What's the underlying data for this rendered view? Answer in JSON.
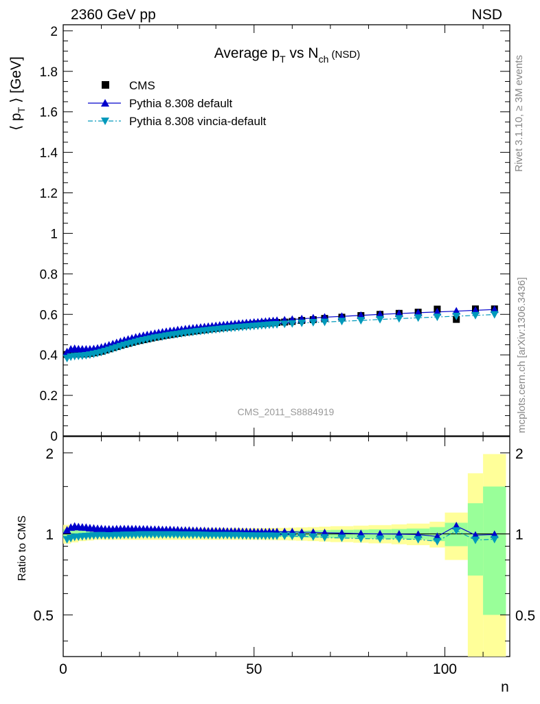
{
  "header": {
    "left": "2360 GeV pp",
    "right": "NSD"
  },
  "side_labels": {
    "rivet": "Rivet 3.1.10, ≥ 3M events",
    "mcplots": "mcplots.cern.ch [arXiv:1306.3436]"
  },
  "chart_data": [
    {
      "type": "scatter",
      "title": "Average p_T vs N_ch (NSD)",
      "ylabel": "⟨ p_T ⟩ [GeV]",
      "watermark": "CMS_2011_S8884919",
      "xlim": [
        0,
        117
      ],
      "ylim": [
        0,
        2.03
      ],
      "yticks": [
        "0",
        "0.2",
        "0.4",
        "0.6",
        "0.8",
        "1",
        "1.2",
        "1.4",
        "1.6",
        "1.8",
        "2"
      ],
      "legend_position": "top-left",
      "colors": {
        "cms": "#000000",
        "default": "#0000cc",
        "vincia": "#0099bb"
      },
      "x": [
        1,
        2,
        3,
        4,
        5,
        6,
        7,
        8,
        9,
        10,
        11,
        12,
        13,
        14,
        15,
        16,
        17,
        18,
        19,
        20,
        21,
        22,
        23,
        24,
        25,
        26,
        27,
        28,
        29,
        30,
        31,
        32,
        33,
        34,
        35,
        36,
        37,
        38,
        39,
        40,
        41,
        42,
        43,
        44,
        45,
        46,
        47,
        48,
        49,
        50,
        51,
        52,
        53,
        54,
        55,
        56,
        58,
        60,
        62.5,
        65.5,
        68.5,
        73,
        78,
        83,
        88,
        93,
        98,
        103,
        108,
        113
      ],
      "series": [
        {
          "name": "CMS",
          "marker": "square",
          "values": [
            0.402,
            0.405,
            0.404,
            0.404,
            0.404,
            0.405,
            0.407,
            0.41,
            0.414,
            0.418,
            0.424,
            0.43,
            0.436,
            0.441,
            0.447,
            0.452,
            0.457,
            0.462,
            0.467,
            0.471,
            0.475,
            0.479,
            0.483,
            0.487,
            0.49,
            0.494,
            0.497,
            0.5,
            0.503,
            0.506,
            0.509,
            0.512,
            0.514,
            0.517,
            0.519,
            0.522,
            0.524,
            0.527,
            0.529,
            0.531,
            0.533,
            0.535,
            0.537,
            0.539,
            0.541,
            0.543,
            0.545,
            0.547,
            0.549,
            0.551,
            0.553,
            0.554,
            0.556,
            0.557,
            0.559,
            0.56,
            0.562,
            0.565,
            0.57,
            0.574,
            0.58,
            0.586,
            0.594,
            0.6,
            0.605,
            0.611,
            0.626,
            0.575,
            0.627,
            0.627
          ]
        },
        {
          "name": "Pythia 8.308 default",
          "marker": "triangle-up",
          "values": [
            0.415,
            0.428,
            0.431,
            0.429,
            0.428,
            0.428,
            0.428,
            0.43,
            0.433,
            0.437,
            0.442,
            0.448,
            0.454,
            0.46,
            0.466,
            0.472,
            0.477,
            0.482,
            0.487,
            0.491,
            0.495,
            0.499,
            0.502,
            0.506,
            0.509,
            0.512,
            0.515,
            0.518,
            0.52,
            0.523,
            0.525,
            0.528,
            0.53,
            0.532,
            0.534,
            0.536,
            0.538,
            0.54,
            0.542,
            0.544,
            0.546,
            0.548,
            0.549,
            0.551,
            0.553,
            0.555,
            0.556,
            0.558,
            0.559,
            0.561,
            0.562,
            0.564,
            0.565,
            0.567,
            0.568,
            0.57,
            0.572,
            0.575,
            0.578,
            0.582,
            0.586,
            0.59,
            0.595,
            0.6,
            0.604,
            0.608,
            0.612,
            0.616,
            0.62,
            0.624
          ]
        },
        {
          "name": "Pythia 8.308 vincia-default",
          "marker": "triangle-down",
          "values": [
            0.383,
            0.39,
            0.393,
            0.394,
            0.395,
            0.397,
            0.4,
            0.404,
            0.408,
            0.413,
            0.418,
            0.424,
            0.43,
            0.436,
            0.442,
            0.448,
            0.453,
            0.458,
            0.463,
            0.468,
            0.472,
            0.476,
            0.48,
            0.484,
            0.487,
            0.49,
            0.494,
            0.497,
            0.5,
            0.502,
            0.505,
            0.508,
            0.51,
            0.512,
            0.515,
            0.517,
            0.519,
            0.521,
            0.523,
            0.525,
            0.527,
            0.529,
            0.531,
            0.532,
            0.534,
            0.536,
            0.537,
            0.539,
            0.54,
            0.542,
            0.543,
            0.545,
            0.546,
            0.548,
            0.549,
            0.55,
            0.552,
            0.554,
            0.557,
            0.56,
            0.562,
            0.566,
            0.57,
            0.575,
            0.579,
            0.583,
            0.587,
            0.591,
            0.595,
            0.599
          ]
        }
      ]
    },
    {
      "type": "scatter",
      "ylabel": "Ratio to CMS",
      "xlabel": "n",
      "xlim": [
        0,
        117
      ],
      "ylim": [
        0.35,
        2.3
      ],
      "xticks": [
        "0",
        "50",
        "100"
      ],
      "yticks": [
        "0.5",
        "1",
        "2"
      ],
      "bands": {
        "x_edges": [
          0,
          2,
          4,
          6,
          8,
          10,
          12,
          14,
          16,
          18,
          20,
          22,
          24,
          26,
          28,
          30,
          32,
          34,
          36,
          38,
          40,
          42,
          44,
          46,
          48,
          50,
          52,
          54,
          56,
          59,
          61,
          64,
          67,
          70,
          76,
          80,
          86,
          90,
          96,
          100,
          106,
          110,
          116
        ],
        "stat_halfwidth": [
          0.04,
          0.035,
          0.03,
          0.028,
          0.027,
          0.026,
          0.026,
          0.025,
          0.025,
          0.025,
          0.025,
          0.025,
          0.025,
          0.025,
          0.025,
          0.025,
          0.025,
          0.025,
          0.025,
          0.025,
          0.025,
          0.025,
          0.025,
          0.025,
          0.025,
          0.025,
          0.026,
          0.026,
          0.027,
          0.028,
          0.029,
          0.031,
          0.033,
          0.035,
          0.037,
          0.04,
          0.043,
          0.047,
          0.06,
          0.1,
          0.3,
          0.5
        ],
        "total_halfwidth": [
          0.08,
          0.07,
          0.06,
          0.055,
          0.05,
          0.05,
          0.05,
          0.05,
          0.05,
          0.05,
          0.05,
          0.05,
          0.05,
          0.05,
          0.05,
          0.05,
          0.05,
          0.05,
          0.05,
          0.05,
          0.05,
          0.05,
          0.05,
          0.05,
          0.05,
          0.05,
          0.051,
          0.052,
          0.053,
          0.055,
          0.057,
          0.06,
          0.064,
          0.068,
          0.073,
          0.078,
          0.085,
          0.092,
          0.11,
          0.2,
          0.68,
          0.98
        ]
      },
      "series": [
        {
          "name": "Pythia 8.308 default",
          "values": [
            1.033,
            1.057,
            1.067,
            1.062,
            1.059,
            1.057,
            1.052,
            1.049,
            1.046,
            1.045,
            1.042,
            1.042,
            1.041,
            1.043,
            1.043,
            1.044,
            1.044,
            1.043,
            1.043,
            1.042,
            1.042,
            1.042,
            1.039,
            1.039,
            1.039,
            1.036,
            1.036,
            1.036,
            1.034,
            1.034,
            1.031,
            1.031,
            1.031,
            1.029,
            1.029,
            1.027,
            1.027,
            1.025,
            1.025,
            1.025,
            1.024,
            1.024,
            1.022,
            1.022,
            1.022,
            1.022,
            1.02,
            1.02,
            1.018,
            1.018,
            1.016,
            1.018,
            1.016,
            1.018,
            1.016,
            1.018,
            1.018,
            1.018,
            1.014,
            1.014,
            1.01,
            1.007,
            1.002,
            1.0,
            0.998,
            0.995,
            0.978,
            1.071,
            0.989,
            0.995
          ]
        },
        {
          "name": "Pythia 8.308 vincia-default",
          "values": [
            0.953,
            0.963,
            0.973,
            0.975,
            0.978,
            0.98,
            0.983,
            0.985,
            0.986,
            0.988,
            0.986,
            0.986,
            0.986,
            0.989,
            0.989,
            0.991,
            0.991,
            0.991,
            0.991,
            0.994,
            0.994,
            0.994,
            0.994,
            0.994,
            0.994,
            0.992,
            0.994,
            0.994,
            0.994,
            0.992,
            0.992,
            0.992,
            0.992,
            0.99,
            0.992,
            0.99,
            0.99,
            0.989,
            0.989,
            0.989,
            0.989,
            0.989,
            0.989,
            0.987,
            0.987,
            0.987,
            0.985,
            0.985,
            0.984,
            0.984,
            0.982,
            0.984,
            0.982,
            0.984,
            0.982,
            0.982,
            0.982,
            0.981,
            0.977,
            0.976,
            0.969,
            0.966,
            0.96,
            0.958,
            0.957,
            0.954,
            0.938,
            1.028,
            0.949,
            0.955
          ]
        }
      ]
    }
  ]
}
